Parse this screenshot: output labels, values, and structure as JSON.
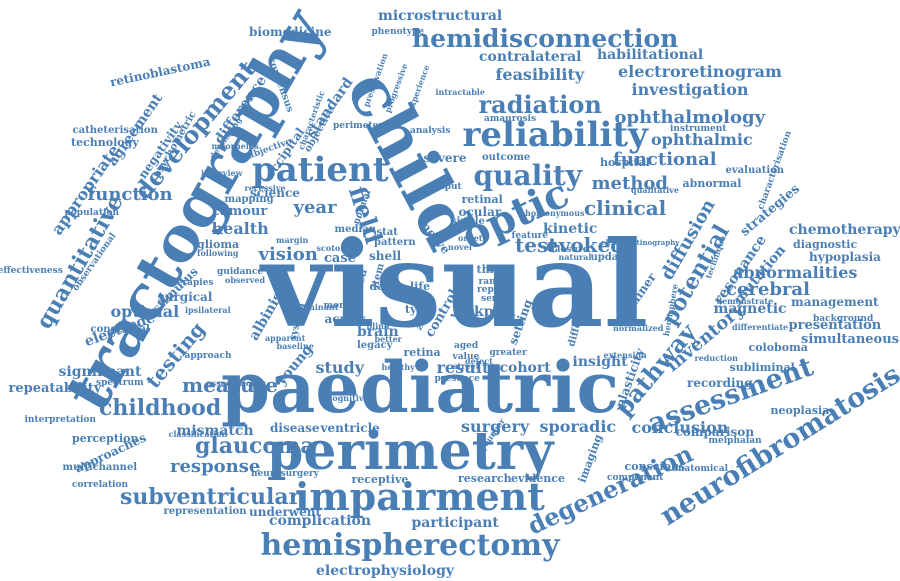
{
  "accent_color": "#4a7fb5",
  "words": [
    "visual",
    "paediatric",
    "tractography",
    "perimetry",
    "child",
    "impairment",
    "patient",
    "reliability",
    "hemispherectomy",
    "optic",
    "quality",
    "hemidisconnection",
    "neurofibromatosis",
    "assessment",
    "pathway",
    "development",
    "radiation",
    "glaucoma",
    "childhood",
    "degeneration",
    "subventricular",
    "quantitative",
    "measure",
    "potential",
    "clinical",
    "method",
    "field",
    "evoked",
    "test",
    "kinetic",
    "diffusion",
    "cerebral",
    "ophthalmology",
    "functional",
    "ophthalmic",
    "investigation",
    "feasibility",
    "electroretinogram",
    "chemotherapy",
    "abnormalities",
    "inventory",
    "resonance",
    "conclusion",
    "surgery",
    "sporadic",
    "response",
    "complication",
    "participant",
    "electrophysiology",
    "testing",
    "vision",
    "health",
    "year",
    "function",
    "appropriate",
    "agreement",
    "difference",
    "standard",
    "consensus",
    "microstructural",
    "contralateral",
    "habilitational",
    "biomedicine",
    "retinoblastoma",
    "catheterisation",
    "technology",
    "psychometric",
    "negativity",
    "optimal",
    "electrode",
    "significant",
    "repeatability",
    "approaches",
    "perception",
    "interpretation",
    "multichannel",
    "representation",
    "underwent",
    "mismatch",
    "disease",
    "ventricle",
    "study",
    "result",
    "cohort",
    "insight",
    "albinism",
    "stimulus",
    "tumour",
    "science",
    "glioma",
    "case",
    "magnetic",
    "presentation",
    "simultaneous",
    "coloboma",
    "management",
    "hypoplasia",
    "diagnostic",
    "mutation",
    "strategies",
    "hospital",
    "severe",
    "outcome",
    "ocular",
    "nerve",
    "retinal",
    "output",
    "mapping",
    "subjective",
    "occipital",
    "objective",
    "phenotype",
    "amaurosis",
    "instrument",
    "perimeter",
    "analysis",
    "evaluation",
    "abnormal",
    "neoplasia",
    "comparison",
    "melphalan",
    "conscious",
    "component",
    "anatomical",
    "evidence",
    "research",
    "receptive",
    "imaging",
    "plasticity",
    "recording",
    "subliminal",
    "examiner",
    "third",
    "brain",
    "legacy",
    "acuity",
    "retina",
    "congenital",
    "surgical",
    "therapies",
    "spectrum",
    "correlation",
    "neurosurgery",
    "classification",
    "effectiveness",
    "population",
    "observational",
    "young",
    "system",
    "human",
    "control",
    "loss",
    "type",
    "data",
    "life",
    "shell",
    "kprm",
    "extension",
    "background",
    "differentiate",
    "demonstrate",
    "characterisation",
    "intractable",
    "normalized",
    "presence",
    "greater",
    "reduction",
    "approach",
    "interview",
    "moorfields",
    "guidance",
    "observed",
    "following",
    "apparent",
    "ipsilateral",
    "baseline",
    "update",
    "technique",
    "series",
    "single",
    "feature",
    "range",
    "report",
    "stat",
    "aged",
    "value",
    "street",
    "defect",
    "younger",
    "homonymous",
    "hemisphere",
    "qualitative",
    "closure",
    "natural",
    "different",
    "cognitive",
    "healthy",
    "association",
    "developing",
    "progressive",
    "preservation",
    "experience",
    "characteristic",
    "recessive",
    "margin",
    "blind",
    "better",
    "median",
    "month",
    "dominant",
    "normal",
    "novel",
    "onset",
    "pattern",
    "setting",
    "related",
    "item",
    "zone",
    "scotoma",
    "electroretinography"
  ]
}
